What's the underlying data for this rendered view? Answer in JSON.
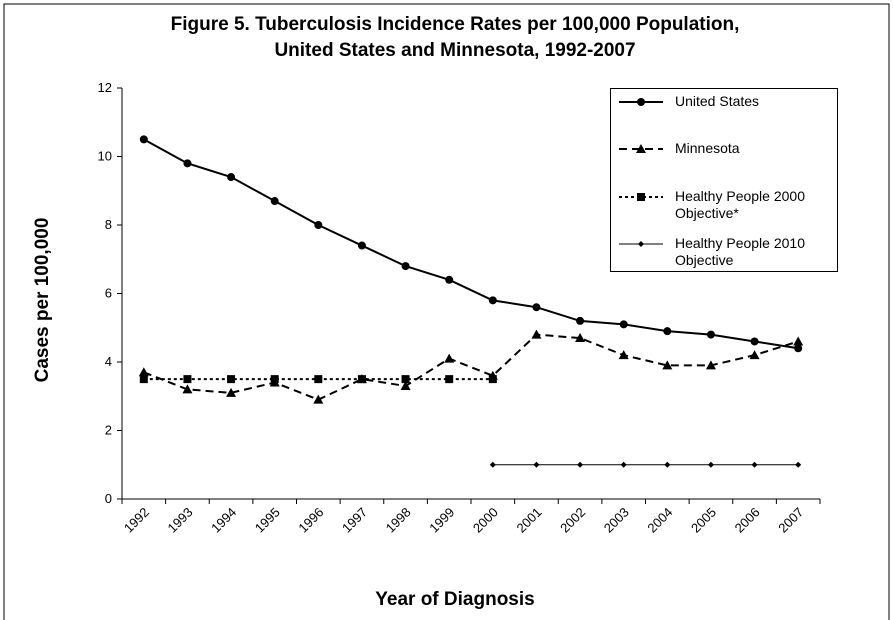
{
  "chart_data": {
    "type": "line",
    "title": [
      "Figure 5. Tuberculosis Incidence Rates per 100,000 Population,",
      "United States and Minnesota, 1992-2007"
    ],
    "y_label": "Cases per 100,000",
    "x_label": "Year of Diagnosis",
    "categories": [
      "1992",
      "1993",
      "1994",
      "1995",
      "1996",
      "1997",
      "1998",
      "1999",
      "2000",
      "2001",
      "2002",
      "2003",
      "2004",
      "2005",
      "2006",
      "2007"
    ],
    "series": [
      {
        "name": "United States",
        "color": "#000000",
        "marker": "circle",
        "dash": "solid",
        "values": [
          10.5,
          9.8,
          9.4,
          8.7,
          8.0,
          7.4,
          6.8,
          6.4,
          5.8,
          5.6,
          5.2,
          5.1,
          4.9,
          4.8,
          4.6,
          4.4
        ]
      },
      {
        "name": "Minnesota",
        "color": "#000000",
        "marker": "triangle",
        "dash": "dashed",
        "values": [
          3.7,
          3.2,
          3.1,
          3.4,
          2.9,
          3.5,
          3.3,
          4.1,
          3.6,
          4.8,
          4.7,
          4.2,
          3.9,
          3.9,
          4.2,
          4.6
        ]
      },
      {
        "name": "Healthy People 2000 Objective*",
        "color": "#000000",
        "marker": "square",
        "dash": "dotted",
        "values": [
          3.5,
          3.5,
          3.5,
          3.5,
          3.5,
          3.5,
          3.5,
          3.5,
          3.5,
          null,
          null,
          null,
          null,
          null,
          null,
          null
        ]
      },
      {
        "name": "Healthy People 2010 Objective",
        "color": "#000000",
        "marker": "diamond",
        "dash": "thin",
        "values": [
          null,
          null,
          null,
          null,
          null,
          null,
          null,
          null,
          1,
          1,
          1,
          1,
          1,
          1,
          1,
          1
        ]
      }
    ],
    "ylim": [
      0,
      12
    ],
    "yticks": [
      0,
      2,
      4,
      6,
      8,
      10,
      12
    ],
    "grid": false,
    "legend": "top-right"
  }
}
